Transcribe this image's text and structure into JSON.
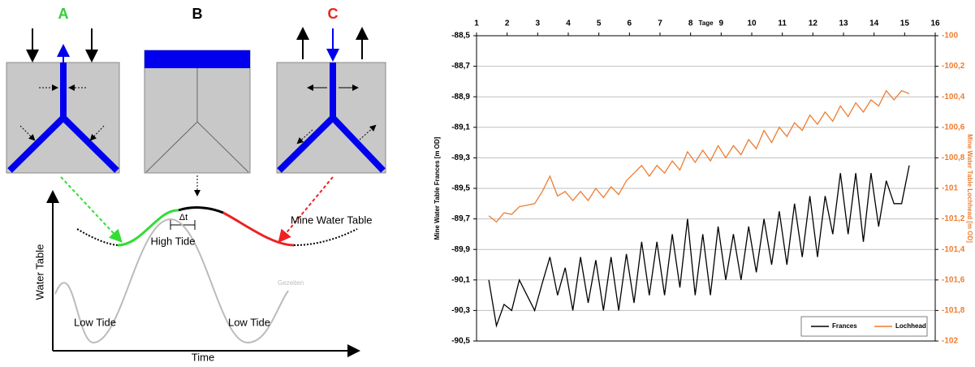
{
  "diagram": {
    "panels": [
      "A",
      "B",
      "C"
    ],
    "curve_label": "Mine Water Table",
    "delta": "Δt",
    "high_tide": "High Tide",
    "low_tide_left": "Low Tide",
    "low_tide_right": "Low Tide",
    "tide_label": "Gezeiten",
    "y_axis_label": "Water Table",
    "x_axis_label": "Time"
  },
  "chart_data": {
    "type": "line",
    "x_label": "Tage",
    "y_label": "Mine Water Table Frances [m OD]",
    "y2_label": "Mine Water Table Lochhead [m OD]",
    "xlim": [
      1,
      16
    ],
    "xticks": [
      1,
      2,
      3,
      4,
      5,
      6,
      7,
      8,
      9,
      10,
      11,
      12,
      13,
      14,
      15,
      16
    ],
    "ylim": [
      -90.5,
      -88.5
    ],
    "yticks": [
      {
        "value": -90.5,
        "label": "-90,5"
      },
      {
        "value": -90.3,
        "label": "-90,3"
      },
      {
        "value": -90.1,
        "label": "-90,1"
      },
      {
        "value": -89.9,
        "label": "-89,9"
      },
      {
        "value": -89.7,
        "label": "-89,7"
      },
      {
        "value": -89.5,
        "label": "-89,5"
      },
      {
        "value": -89.3,
        "label": "-89,3"
      },
      {
        "value": -89.1,
        "label": "-89,1"
      },
      {
        "value": -88.9,
        "label": "-88,9"
      },
      {
        "value": -88.7,
        "label": "-88,7"
      },
      {
        "value": -88.5,
        "label": "-88,5"
      }
    ],
    "y2lim": [
      -102,
      -100
    ],
    "y2ticks": [
      -102,
      {
        "value": -101.8,
        "label": "-101,8"
      },
      {
        "value": -101.6,
        "label": "-101,6"
      },
      {
        "value": -101.4,
        "label": "-101,4"
      },
      {
        "value": -101.2,
        "label": "-101,2"
      },
      -101,
      {
        "value": -100.8,
        "label": "-100,8"
      },
      {
        "value": -100.6,
        "label": "-100,6"
      },
      {
        "value": -100.4,
        "label": "-100,4"
      },
      {
        "value": -100.2,
        "label": "-100,2"
      },
      -100
    ],
    "grid": true,
    "legend": "bottom-right",
    "x": [
      1.4,
      1.65,
      1.9,
      2.15,
      2.4,
      2.65,
      2.9,
      3.15,
      3.4,
      3.65,
      3.9,
      4.15,
      4.4,
      4.65,
      4.9,
      5.15,
      5.4,
      5.65,
      5.9,
      6.15,
      6.4,
      6.65,
      6.9,
      7.15,
      7.4,
      7.65,
      7.9,
      8.15,
      8.4,
      8.65,
      8.9,
      9.15,
      9.4,
      9.65,
      9.9,
      10.15,
      10.4,
      10.65,
      10.9,
      11.15,
      11.4,
      11.65,
      11.9,
      12.15,
      12.4,
      12.65,
      12.9,
      13.15,
      13.4,
      13.65,
      13.9,
      14.15,
      14.4,
      14.65,
      14.9,
      15.15
    ],
    "series": [
      {
        "name": "Frances",
        "color": "#000000",
        "values": [
          -90.1,
          -90.4,
          -90.26,
          -90.3,
          -90.1,
          -90.2,
          -90.3,
          -90.12,
          -89.95,
          -90.2,
          -90.02,
          -90.3,
          -89.95,
          -90.25,
          -89.97,
          -90.3,
          -89.95,
          -90.3,
          -89.93,
          -90.25,
          -89.85,
          -90.2,
          -89.85,
          -90.2,
          -89.8,
          -90.15,
          -89.7,
          -90.2,
          -89.8,
          -90.2,
          -89.75,
          -90.1,
          -89.8,
          -90.1,
          -89.75,
          -90.05,
          -89.7,
          -90.0,
          -89.65,
          -90.0,
          -89.6,
          -89.95,
          -89.55,
          -89.95,
          -89.55,
          -89.8,
          -89.4,
          -89.8,
          -89.4,
          -89.85,
          -89.4,
          -89.75,
          -89.45,
          -89.6,
          -89.6,
          -89.35
        ]
      },
      {
        "name": "Lochhead",
        "color": "#ed7d31",
        "axis": "y2",
        "values": [
          -101.18,
          -101.22,
          -101.16,
          -101.17,
          -101.12,
          -101.11,
          -101.1,
          -101.02,
          -100.92,
          -101.05,
          -101.02,
          -101.08,
          -101.02,
          -101.08,
          -101.0,
          -101.06,
          -100.99,
          -101.04,
          -100.95,
          -100.9,
          -100.85,
          -100.92,
          -100.85,
          -100.9,
          -100.82,
          -100.88,
          -100.76,
          -100.83,
          -100.75,
          -100.82,
          -100.72,
          -100.8,
          -100.72,
          -100.78,
          -100.68,
          -100.74,
          -100.62,
          -100.7,
          -100.6,
          -100.66,
          -100.57,
          -100.62,
          -100.52,
          -100.58,
          -100.5,
          -100.56,
          -100.46,
          -100.53,
          -100.44,
          -100.5,
          -100.42,
          -100.46,
          -100.36,
          -100.42,
          -100.36,
          -100.38
        ]
      }
    ]
  }
}
